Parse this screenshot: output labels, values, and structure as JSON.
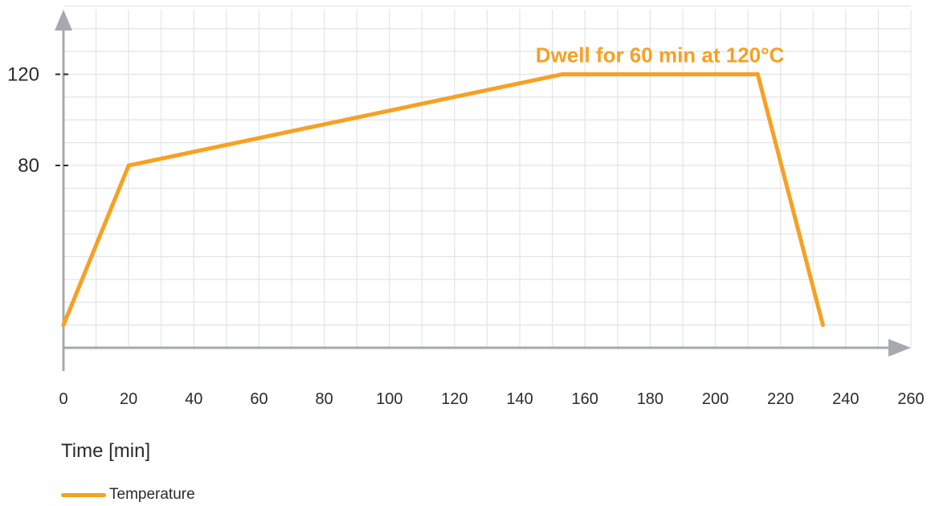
{
  "chart_data": {
    "type": "line",
    "title": "",
    "xlabel": "Time [min]",
    "ylabel": "",
    "xlim": [
      0,
      260
    ],
    "ylim": [
      0,
      150
    ],
    "x_ticks": [
      "0",
      "20",
      "40",
      "60",
      "80",
      "100",
      "120",
      "140",
      "160",
      "180",
      "200",
      "220",
      "240",
      "260"
    ],
    "y_ticks": [
      {
        "value": 80,
        "label": "80"
      },
      {
        "value": 120,
        "label": "120"
      }
    ],
    "grid": true,
    "legend_position": "bottom-left",
    "series": [
      {
        "name": "Temperature",
        "color": "#F7A023",
        "x": [
          0,
          20,
          153,
          213,
          233
        ],
        "y": [
          10,
          80,
          120,
          120,
          10
        ]
      }
    ],
    "annotations": [
      {
        "text": "Dwell for 60 min at 120°C",
        "x": 183,
        "y": 120,
        "color": "#F7A023"
      }
    ],
    "axis_color": "#a7a9ae",
    "grid_color": "#e3e4e6"
  }
}
